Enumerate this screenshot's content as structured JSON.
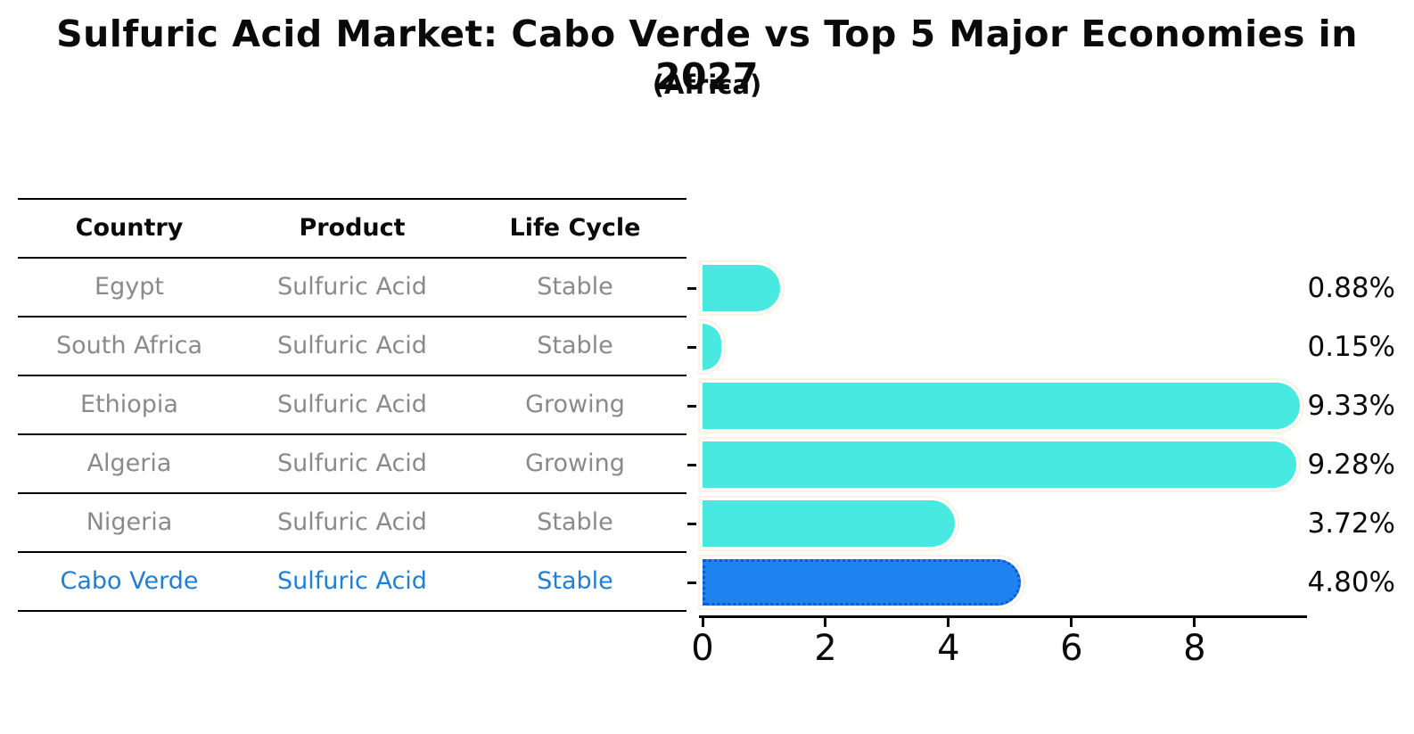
{
  "chart_data": {
    "type": "bar",
    "orientation": "horizontal",
    "title": "Sulfuric Acid Market: Cabo Verde vs Top 5 Major Economies in 2027",
    "subtitle": "(Africa)",
    "categories": [
      "Egypt",
      "South Africa",
      "Ethiopia",
      "Algeria",
      "Nigeria",
      "Cabo Verde"
    ],
    "values": [
      0.88,
      0.15,
      9.33,
      9.28,
      3.72,
      4.8
    ],
    "value_labels": [
      "0.88%",
      "0.15%",
      "9.33%",
      "9.28%",
      "3.72%",
      "4.80%"
    ],
    "xlabel": "",
    "ylabel": "",
    "xticks": [
      0,
      2,
      4,
      6,
      8
    ],
    "xlim": [
      0,
      9.8
    ],
    "grid": false,
    "legend": false,
    "highlight_index": 5
  },
  "table": {
    "headers": [
      "Country",
      "Product",
      "Life Cycle"
    ],
    "rows": [
      {
        "country": "Egypt",
        "product": "Sulfuric Acid",
        "life_cycle": "Stable",
        "highlight": false
      },
      {
        "country": "South Africa",
        "product": "Sulfuric Acid",
        "life_cycle": "Stable",
        "highlight": false
      },
      {
        "country": "Ethiopia",
        "product": "Sulfuric Acid",
        "life_cycle": "Growing",
        "highlight": false
      },
      {
        "country": "Algeria",
        "product": "Sulfuric Acid",
        "life_cycle": "Growing",
        "highlight": false
      },
      {
        "country": "Nigeria",
        "product": "Sulfuric Acid",
        "life_cycle": "Stable",
        "highlight": false
      },
      {
        "country": "Cabo Verde",
        "product": "Sulfuric Acid",
        "life_cycle": "Stable",
        "highlight": true
      }
    ]
  },
  "colors": {
    "bar": "#48E9E1",
    "highlight_bar": "#1E82F0",
    "highlight_border": "#1458C8",
    "highlight_text": "#1F7FD6",
    "muted_text": "#8A8A8A",
    "text": "#0A0A0A",
    "halo_inner": "#FFFFFF",
    "halo_outer": "#FBF3E2",
    "axis": "#000000"
  }
}
